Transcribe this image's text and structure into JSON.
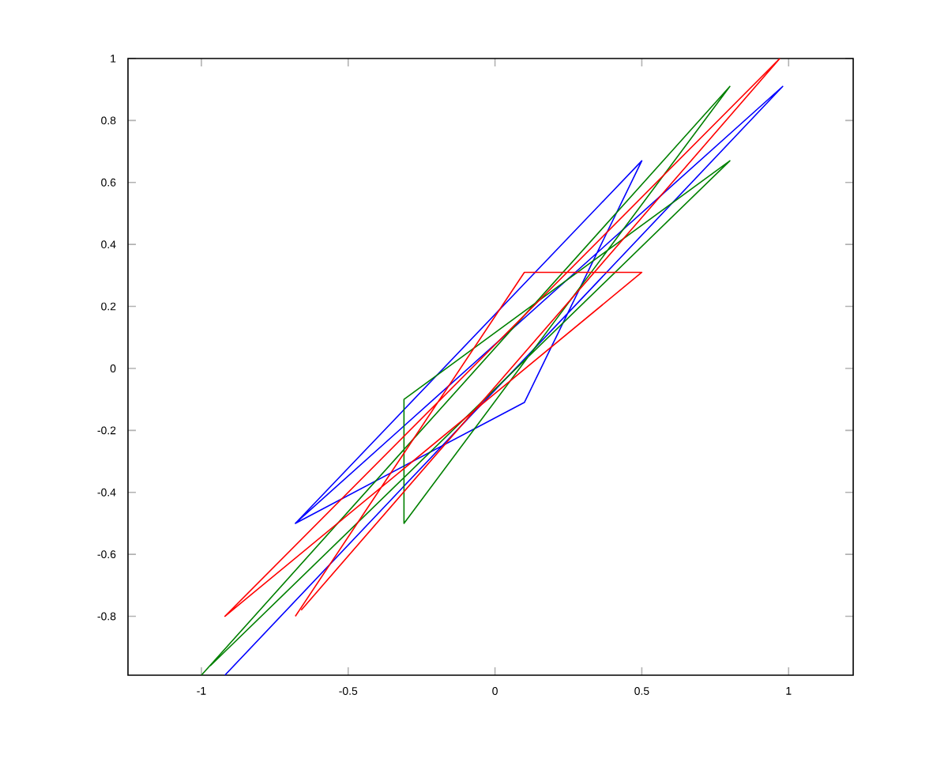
{
  "chart_data": {
    "type": "line",
    "series": [
      {
        "color": "#0000ff",
        "x": [
          -0.92,
          0.98,
          -0.68,
          0.5,
          0.1,
          -0.68
        ],
        "values": [
          -0.99,
          0.91,
          -0.5,
          0.67,
          -0.11,
          -0.5
        ]
      },
      {
        "color": "#008000",
        "x": [
          -1,
          0.8,
          -0.31,
          -0.31,
          0.8,
          -0.97
        ],
        "values": [
          -0.99,
          0.91,
          -0.5,
          -0.1,
          0.67,
          -0.96
        ]
      },
      {
        "color": "#ff0000",
        "x": [
          -0.68,
          0.1,
          0.5,
          -0.92,
          0.97,
          -0.66
        ],
        "values": [
          -0.8,
          0.31,
          0.31,
          -0.8,
          1.0,
          -0.78
        ]
      }
    ],
    "xlim": [
      -1.25,
      1.22
    ],
    "ylim": [
      -0.99,
      1
    ],
    "xticks": [
      -1,
      -0.5,
      0,
      0.5,
      1
    ],
    "yticks": [
      -0.8,
      -0.6,
      -0.4,
      -0.2,
      0,
      0.2,
      0.4,
      0.6,
      0.8,
      1
    ],
    "grid": false
  }
}
